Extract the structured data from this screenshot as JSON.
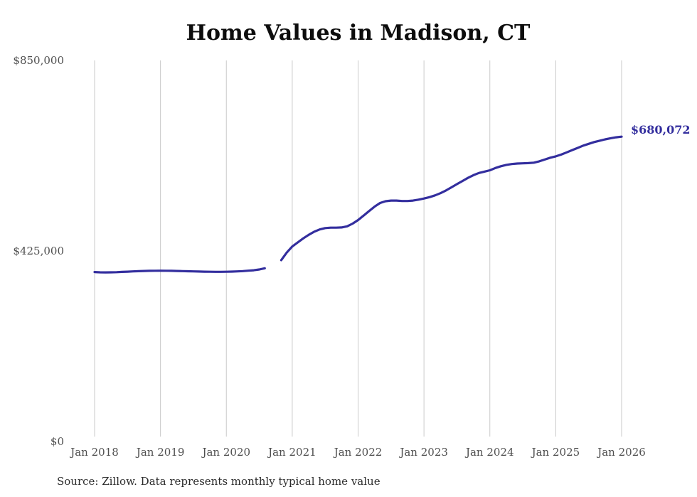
{
  "title": "Home Values in Madison, CT",
  "source_note": "Source: Zillow. Data represents monthly typical home value",
  "end_label": "$680,072",
  "colors": {
    "line": "#332e9e",
    "end_label": "#332e9e",
    "axis_text": "#4f4f4f",
    "title_text": "#0d0d0d",
    "source_text": "#2b2b2b",
    "gridline": "#cacaca",
    "background": "#ffffff"
  },
  "chart_data": {
    "type": "line",
    "title": "Home Values in Madison, CT",
    "xlabel": "",
    "ylabel": "",
    "ylim": [
      0,
      850000
    ],
    "grid": "vertical-only",
    "legend": "none",
    "unit": "USD",
    "frequency": "monthly",
    "x_start": "2018-01",
    "x_end": "2026-01",
    "gap_note": "no data for Sep 2020 and Oct 2020",
    "y_ticks": [
      {
        "label": "$0",
        "value": 0
      },
      {
        "label": "$425,000",
        "value": 425000
      },
      {
        "label": "$850,000",
        "value": 850000
      }
    ],
    "x_ticks": [
      "Jan 2018",
      "Jan 2019",
      "Jan 2020",
      "Jan 2021",
      "Jan 2022",
      "Jan 2023",
      "Jan 2024",
      "Jan 2025",
      "Jan 2026"
    ],
    "series": [
      {
        "name": "Typical home value",
        "end_value": 680072,
        "end_value_label": "$680,072",
        "values": [
          378000,
          377500,
          377300,
          377400,
          377800,
          378300,
          378900,
          379500,
          380000,
          380400,
          380700,
          380900,
          381000,
          380900,
          380700,
          380400,
          380100,
          379800,
          379500,
          379200,
          378900,
          378700,
          378600,
          378600,
          378700,
          379000,
          379500,
          380200,
          381000,
          382000,
          383800,
          386500,
          null,
          null,
          404500,
          421500,
          435000,
          444000,
          453000,
          461000,
          468000,
          473000,
          476000,
          477000,
          477000,
          477500,
          480000,
          486000,
          494000,
          504000,
          514000,
          524000,
          532000,
          536000,
          537500,
          537500,
          536500,
          536500,
          537500,
          539500,
          542000,
          545000,
          549000,
          554000,
          560000,
          567000,
          574000,
          581000,
          588000,
          594000,
          599000,
          602000,
          605000,
          610000,
          614000,
          617000,
          619000,
          620000,
          620500,
          621000,
          622000,
          625000,
          629000,
          633000,
          636000,
          640000,
          645000,
          650000,
          655000,
          660000,
          664000,
          668000,
          671000,
          674000,
          676500,
          678500,
          680072
        ]
      }
    ]
  }
}
